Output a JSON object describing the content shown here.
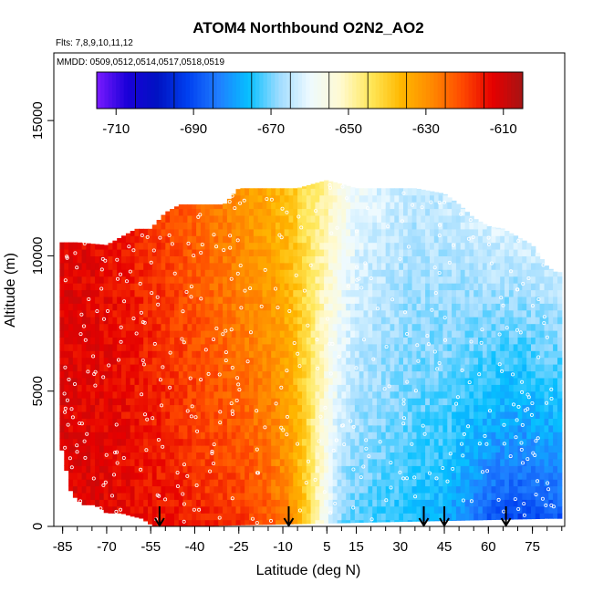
{
  "chart_data": {
    "type": "heatmap",
    "title": "ATOM4 Northbound O2N2_AO2",
    "subtitle_flights": "Flts: 7,8,9,10,11,12",
    "subtitle_dates": "MMDD: 0509,0512,0514,0517,0518,0519",
    "xlabel": "Latitude (deg N)",
    "ylabel": "Altitude (m)",
    "xlim": [
      -88,
      86
    ],
    "ylim": [
      0,
      17500
    ],
    "x_ticks": [
      -85,
      -70,
      -55,
      -40,
      -25,
      -10,
      5,
      15,
      30,
      45,
      60,
      75
    ],
    "x_tick_labels": [
      "-85",
      "-70",
      "-55",
      "-40",
      "-25",
      "-10",
      "5",
      "15",
      "30",
      "45",
      "60",
      "75"
    ],
    "y_ticks": [
      0,
      5000,
      10000,
      15000
    ],
    "y_tick_labels": [
      "0",
      "5000",
      "10000",
      "15000"
    ],
    "colorbar": {
      "min": -715,
      "max": -605,
      "ticks": [
        -710,
        -690,
        -670,
        -650,
        -630,
        -610
      ],
      "tick_labels": [
        "-710",
        "-690",
        "-670",
        "-650",
        "-630",
        "-610"
      ],
      "colors": [
        "#7a1bff",
        "#1a00d9",
        "#0012c2",
        "#0040f0",
        "#1f7dff",
        "#06c0ff",
        "#9fdcff",
        "#eefaff",
        "#fffad2",
        "#ffe85a",
        "#ffb800",
        "#ff8a00",
        "#ff4a00",
        "#e60000",
        "#a61414"
      ]
    },
    "latitude_markers": [
      -52,
      -8,
      38,
      45,
      66
    ],
    "field_profile": {
      "lat": [
        -85,
        -70,
        -55,
        -40,
        -25,
        -15,
        -8,
        -2,
        5,
        10,
        15,
        25,
        35,
        45,
        55,
        62,
        70,
        80
      ],
      "surface": [
        -612,
        -612,
        -614,
        -616,
        -618,
        -622,
        -628,
        -640,
        -660,
        -670,
        -672,
        -674,
        -676,
        -678,
        -685,
        -690,
        -692,
        -690
      ],
      "upper": [
        -612,
        -614,
        -618,
        -624,
        -630,
        -634,
        -638,
        -644,
        -650,
        -655,
        -660,
        -663,
        -665,
        -664,
        -662,
        -660,
        -660,
        -658
      ]
    },
    "coverage": {
      "top_altitude_by_lat": {
        "lat": [
          -86,
          -80,
          -70,
          -60,
          -55,
          -50,
          -45,
          -40,
          -35,
          -30,
          -25,
          -15,
          -5,
          5,
          15,
          25,
          35,
          45,
          50,
          55,
          60,
          65,
          70,
          75,
          80,
          83
        ],
        "alt": [
          10500,
          10500,
          10400,
          11000,
          11000,
          11600,
          11900,
          11900,
          11900,
          11900,
          12500,
          12500,
          12500,
          12800,
          12500,
          12500,
          12500,
          12300,
          11900,
          11400,
          11100,
          11000,
          10700,
          10400,
          9600,
          9400
        ]
      },
      "bottom_altitude_by_lat": {
        "lat": [
          -86,
          -82,
          -78,
          -74,
          -70,
          -65,
          -62,
          -58,
          -54,
          -50,
          80,
          83
        ],
        "alt": [
          3200,
          1200,
          800,
          800,
          500,
          500,
          400,
          300,
          0,
          0,
          300,
          300
        ]
      }
    }
  }
}
